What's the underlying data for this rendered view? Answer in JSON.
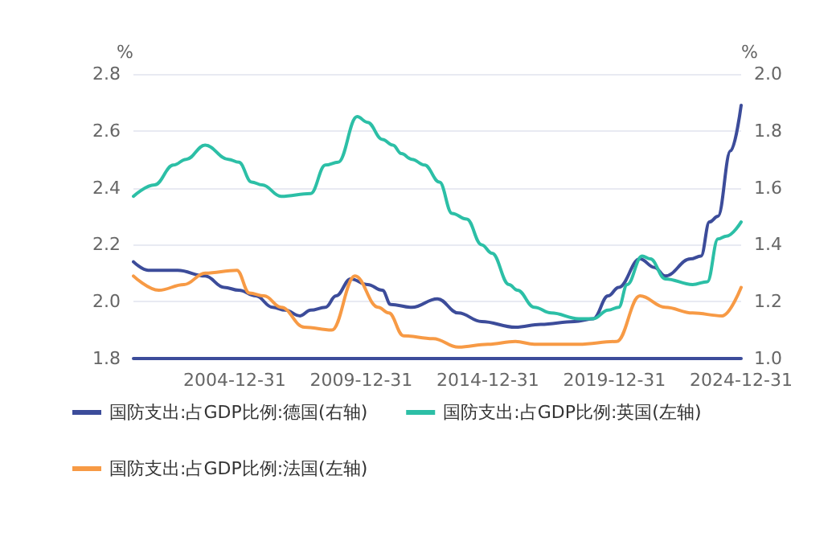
{
  "chart_data": {
    "type": "line",
    "ylabel": "%",
    "y2label": "%",
    "xlim": [
      "2001-01",
      "2024-12-31"
    ],
    "xticks": [
      {
        "value": "2004-12-31",
        "label": "2004-12-31"
      },
      {
        "value": "2009-12-31",
        "label": "2009-12-31"
      },
      {
        "value": "2014-12-31",
        "label": "2014-12-31"
      },
      {
        "value": "2019-12-31",
        "label": "2019-12-31"
      },
      {
        "value": "2024-12-31",
        "label": "2024-12-31"
      }
    ],
    "ylim": [
      1.8,
      2.8
    ],
    "yticks": [
      1.8,
      {
        "value": 2.0,
        "label": "2.0"
      },
      2.2,
      2.4,
      2.6,
      2.8
    ],
    "y2lim": [
      1.0,
      2.0
    ],
    "y2ticks": [
      {
        "value": 1.0,
        "label": "1.0"
      },
      1.2,
      1.4,
      1.6,
      1.8,
      {
        "value": 2.0,
        "label": "2.0"
      }
    ],
    "grid": "y",
    "legend": "bottom",
    "marker": "none",
    "line_style": "solid",
    "series": [
      {
        "name": "国防支出:占GDP比例:德国(右轴)",
        "color": "#3c4c9a",
        "axis": "y2",
        "x": [
          "2001-01",
          "2001-08",
          "2002-10",
          "2003-11",
          "2004-08",
          "2005-03",
          "2005-11",
          "2006-07",
          "2007-01",
          "2007-08",
          "2008-01",
          "2008-08",
          "2009-01",
          "2009-08",
          "2010-04",
          "2010-11",
          "2011-03",
          "2012-01",
          "2013-01",
          "2013-11",
          "2014-10",
          "2016-02",
          "2017-02",
          "2018-06",
          "2019-03",
          "2019-10",
          "2020-03",
          "2021-01",
          "2021-08",
          "2022-01",
          "2023-01",
          "2023-06",
          "2023-10",
          "2024-02",
          "2024-08",
          "2024-12-31"
        ],
        "values": [
          1.34,
          1.31,
          1.31,
          1.29,
          1.25,
          1.24,
          1.22,
          1.18,
          1.17,
          1.15,
          1.17,
          1.18,
          1.22,
          1.28,
          1.26,
          1.24,
          1.19,
          1.18,
          1.21,
          1.16,
          1.13,
          1.11,
          1.12,
          1.13,
          1.14,
          1.22,
          1.25,
          1.35,
          1.32,
          1.29,
          1.35,
          1.36,
          1.48,
          1.5,
          1.73,
          1.89
        ]
      },
      {
        "name": "国防支出:占GDP比例:英国(左轴)",
        "color": "#2cbfa6",
        "x": [
          "2001-01",
          "2001-11",
          "2002-08",
          "2003-02",
          "2003-11",
          "2004-10",
          "2005-03",
          "2005-09",
          "2006-02",
          "2006-11",
          "2008-01",
          "2008-08",
          "2009-02",
          "2009-11",
          "2010-04",
          "2010-11",
          "2011-04",
          "2011-08",
          "2012-01",
          "2012-07",
          "2013-02",
          "2013-08",
          "2014-03",
          "2014-10",
          "2015-03",
          "2015-11",
          "2016-03",
          "2016-11",
          "2017-07",
          "2018-08",
          "2019-03",
          "2019-10",
          "2020-03",
          "2020-07",
          "2021-02",
          "2021-06",
          "2022-01",
          "2023-02",
          "2023-09",
          "2024-02",
          "2024-06",
          "2024-12-31"
        ],
        "values": [
          2.37,
          2.41,
          2.48,
          2.5,
          2.55,
          2.5,
          2.49,
          2.42,
          2.41,
          2.37,
          2.38,
          2.48,
          2.49,
          2.65,
          2.63,
          2.57,
          2.55,
          2.52,
          2.5,
          2.48,
          2.42,
          2.31,
          2.29,
          2.2,
          2.17,
          2.06,
          2.04,
          1.98,
          1.96,
          1.94,
          1.94,
          1.97,
          1.98,
          2.06,
          2.16,
          2.15,
          2.08,
          2.06,
          2.07,
          2.22,
          2.23,
          2.28
        ]
      },
      {
        "name": "国防支出:占GDP比例:法国(左轴)",
        "color": "#f79a45",
        "x": [
          "2001-01",
          "2002-01",
          "2003-01",
          "2003-11",
          "2005-02",
          "2005-08",
          "2006-03",
          "2006-11",
          "2007-10",
          "2008-11",
          "2009-10",
          "2010-09",
          "2011-02",
          "2011-09",
          "2012-11",
          "2013-11",
          "2015-01",
          "2016-02",
          "2016-11",
          "2018-08",
          "2020-02",
          "2021-01",
          "2022-01",
          "2023-02",
          "2024-04",
          "2024-12-31"
        ],
        "values": [
          2.09,
          2.04,
          2.06,
          2.1,
          2.11,
          2.03,
          2.02,
          1.98,
          1.91,
          1.9,
          2.09,
          1.98,
          1.96,
          1.88,
          1.87,
          1.84,
          1.85,
          1.86,
          1.85,
          1.85,
          1.86,
          2.02,
          1.98,
          1.96,
          1.95,
          2.05
        ]
      }
    ]
  }
}
